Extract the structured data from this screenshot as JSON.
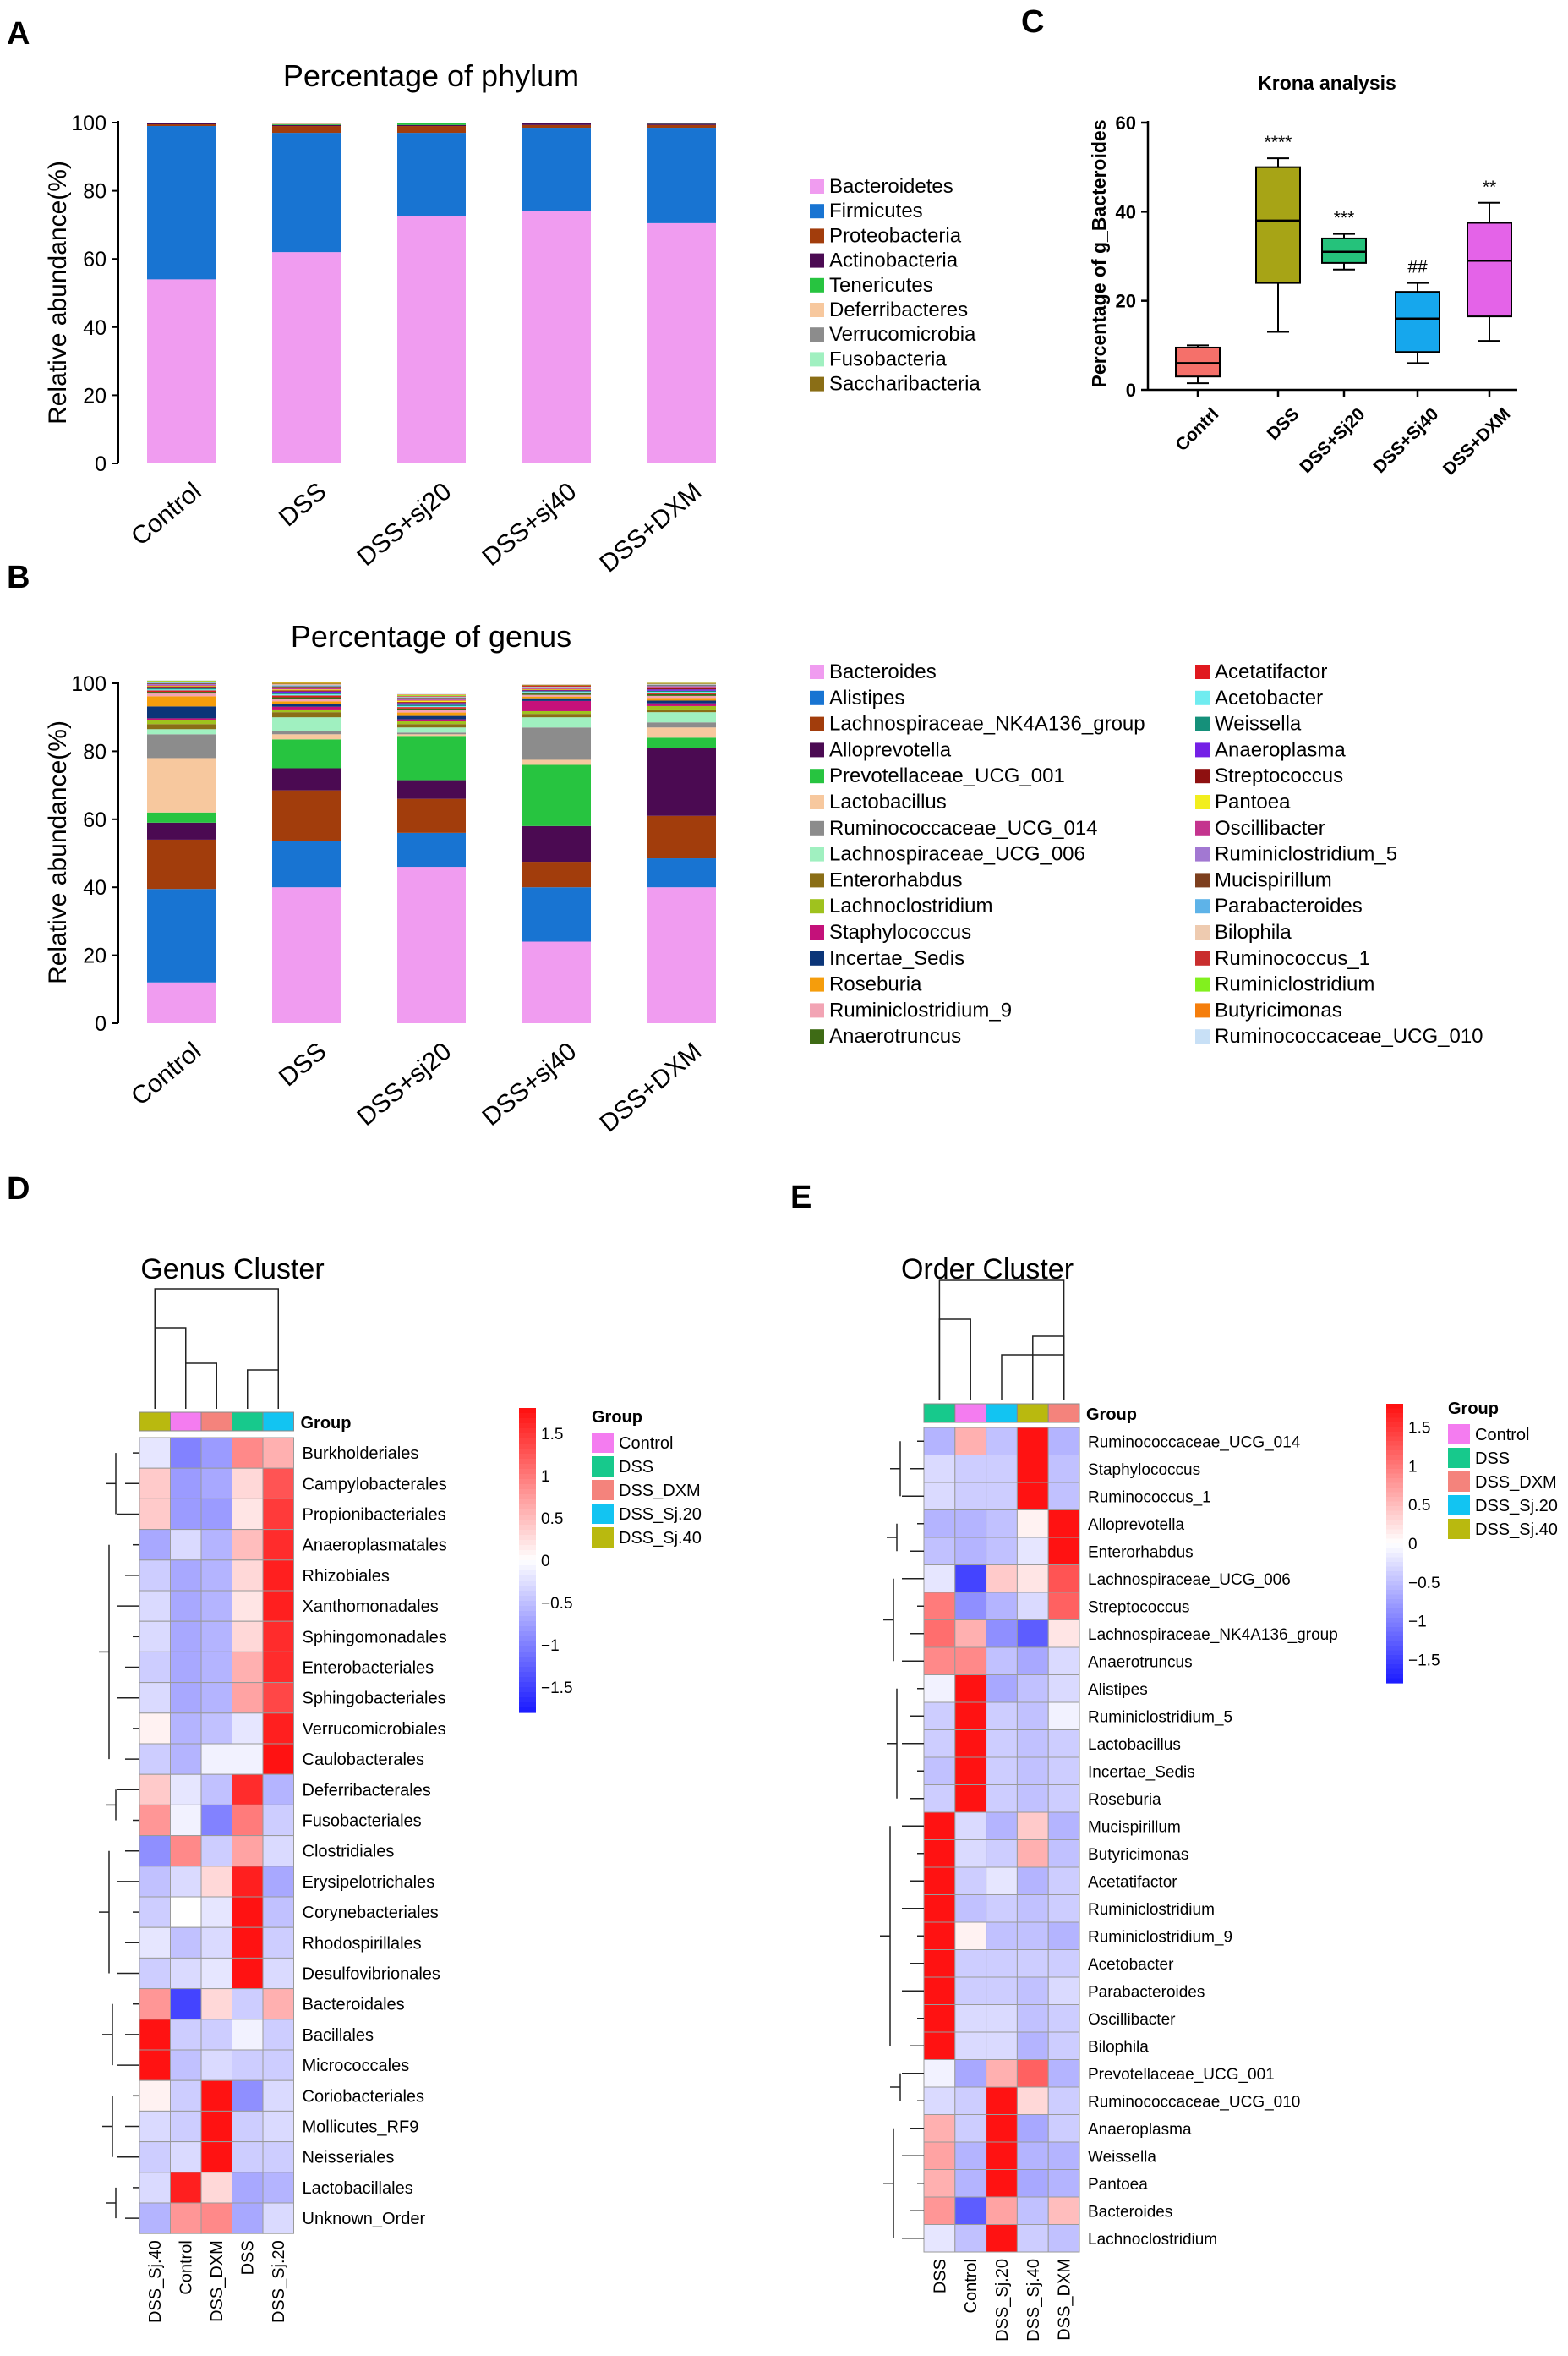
{
  "panel_labels": {
    "a": "A",
    "b": "B",
    "c": "C",
    "d": "D",
    "e": "E"
  },
  "chart_data": [
    {
      "panel": "A",
      "type": "bar",
      "stacked": true,
      "title": "Percentage of phylum",
      "xlabel": "",
      "ylabel": "Relative abundance(%)",
      "ylim": [
        0,
        100
      ],
      "yticks": [
        "0",
        "20",
        "40",
        "60",
        "80",
        "100"
      ],
      "categories": [
        "Control",
        "DSS",
        "DSS+sj20",
        "DSS+sj40",
        "DSS+DXM"
      ],
      "series": [
        {
          "name": "Bacteroidetes",
          "color": "#f09cf0",
          "values": [
            54,
            62,
            72.5,
            74,
            70.5
          ]
        },
        {
          "name": "Firmicutes",
          "color": "#1874d2",
          "values": [
            45,
            35,
            24.5,
            24.5,
            28
          ]
        },
        {
          "name": "Proteobacteria",
          "color": "#a23d0c",
          "values": [
            0.5,
            2,
            2,
            0.8,
            0.8
          ]
        },
        {
          "name": "Actinobacteria",
          "color": "#4b0a52",
          "values": [
            0.3,
            0.3,
            0.3,
            0.5,
            0.4
          ]
        },
        {
          "name": "Tenericutes",
          "color": "#27c440",
          "values": [
            0.1,
            0.2,
            0.5,
            0.1,
            0.2
          ]
        },
        {
          "name": "Deferribacteres",
          "color": "#f7c89e",
          "values": [
            0.05,
            0.2,
            0.1,
            0.05,
            0.05
          ]
        },
        {
          "name": "Verrucomicrobia",
          "color": "#8c8c8c",
          "values": [
            0.05,
            0.1,
            0.05,
            0.02,
            0.02
          ]
        },
        {
          "name": "Fusobacteria",
          "color": "#a0f0c0",
          "values": [
            0,
            0.1,
            0.05,
            0.02,
            0.02
          ]
        },
        {
          "name": "Saccharibacteria",
          "color": "#8a6e16",
          "values": [
            0,
            0.1,
            0,
            0.01,
            0.01
          ]
        }
      ]
    },
    {
      "panel": "B",
      "type": "bar",
      "stacked": true,
      "title": "Percentage of genus",
      "xlabel": "",
      "ylabel": "Relative abundance(%)",
      "ylim": [
        0,
        100
      ],
      "yticks": [
        "0",
        "20",
        "40",
        "60",
        "80",
        "100"
      ],
      "categories": [
        "Control",
        "DSS",
        "DSS+sj20",
        "DSS+sj40",
        "DSS+DXM"
      ],
      "series": [
        {
          "name": "Bacteroides",
          "color": "#f09cf0",
          "values": [
            12,
            40,
            46,
            24,
            40
          ]
        },
        {
          "name": "Alistipes",
          "color": "#1874d2",
          "values": [
            27.5,
            13.5,
            10,
            16,
            8.5
          ]
        },
        {
          "name": "Lachnospiraceae_NK4A136_group",
          "color": "#a23d0c",
          "values": [
            14.5,
            15,
            10,
            7.5,
            12.5
          ]
        },
        {
          "name": "Alloprevotella",
          "color": "#4b0a52",
          "values": [
            5,
            6.5,
            5.5,
            10.5,
            20
          ]
        },
        {
          "name": "Prevotellaceae_UCG_001",
          "color": "#27c440",
          "values": [
            3,
            8.5,
            13,
            18,
            3
          ]
        },
        {
          "name": "Lactobacillus",
          "color": "#f7c89e",
          "values": [
            16,
            1.5,
            0.5,
            1.5,
            3
          ]
        },
        {
          "name": "Ruminococcaceae_UCG_014",
          "color": "#8c8c8c",
          "values": [
            7,
            1,
            0.5,
            9.5,
            1.5
          ]
        },
        {
          "name": "Lachnospiraceae_UCG_006",
          "color": "#a0f0c0",
          "values": [
            1.5,
            4,
            1.5,
            3,
            3
          ]
        },
        {
          "name": "Enterorhabdus",
          "color": "#8a6e16",
          "values": [
            1.5,
            1.5,
            1,
            1,
            0.8
          ]
        },
        {
          "name": "Lachnoclostridium",
          "color": "#9fc21e",
          "values": [
            1.2,
            0.8,
            0.8,
            0.8,
            1
          ]
        },
        {
          "name": "Staphylococcus",
          "color": "#c4117a",
          "values": [
            0.5,
            0.8,
            0.6,
            3,
            0.8
          ]
        },
        {
          "name": "Incertae_Sedis",
          "color": "#0b3578",
          "values": [
            3.5,
            0.8,
            1,
            0.8,
            0.8
          ]
        },
        {
          "name": "Roseburia",
          "color": "#f59d0c",
          "values": [
            3,
            0.8,
            1,
            0.5,
            0.8
          ]
        },
        {
          "name": "Ruminiclostridium_9",
          "color": "#f2a4b4",
          "values": [
            0.8,
            0.7,
            0.7,
            0.5,
            0.6
          ]
        },
        {
          "name": "Anaerotruncus",
          "color": "#3e6b15",
          "values": [
            0.5,
            0.5,
            0.5,
            0.4,
            0.5
          ]
        },
        {
          "name": "Acetatifactor",
          "color": "#e0191f",
          "values": [
            0.4,
            0.5,
            0.4,
            0.3,
            0.4
          ]
        },
        {
          "name": "Acetobacter",
          "color": "#70ecf0",
          "values": [
            0.3,
            0.4,
            0.3,
            0.2,
            0.3
          ]
        },
        {
          "name": "Weissella",
          "color": "#15907a",
          "values": [
            0.3,
            0.4,
            0.4,
            0.2,
            0.3
          ]
        },
        {
          "name": "Anaeroplasma",
          "color": "#7420e6",
          "values": [
            0.3,
            0.4,
            0.5,
            0.2,
            0.4
          ]
        },
        {
          "name": "Streptococcus",
          "color": "#8e1010",
          "values": [
            0.3,
            0.3,
            0.3,
            0.2,
            0.3
          ]
        },
        {
          "name": "Pantoea",
          "color": "#f2ee1e",
          "values": [
            0.2,
            0.3,
            0.4,
            0.2,
            0.3
          ]
        },
        {
          "name": "Oscillibacter",
          "color": "#c4348e",
          "values": [
            0.2,
            0.3,
            0.3,
            0.2,
            0.2
          ]
        },
        {
          "name": "Ruminiclostridium_5",
          "color": "#a278d2",
          "values": [
            0.3,
            0.3,
            0.3,
            0.2,
            0.2
          ]
        },
        {
          "name": "Mucispirillum",
          "color": "#7d3f1e",
          "values": [
            0.2,
            0.3,
            0.2,
            0.1,
            0.2
          ]
        },
        {
          "name": "Parabacteroides",
          "color": "#5eb3e8",
          "values": [
            0.2,
            0.3,
            0.2,
            0.1,
            0.2
          ]
        },
        {
          "name": "Bilophila",
          "color": "#eecbb0",
          "values": [
            0.2,
            0.3,
            0.2,
            0.1,
            0.2
          ]
        },
        {
          "name": "Ruminococcus_1",
          "color": "#c92e2e",
          "values": [
            0.1,
            0.2,
            0.2,
            0.4,
            0.1
          ]
        },
        {
          "name": "Ruminiclostridium",
          "color": "#82f01e",
          "values": [
            0.2,
            0.2,
            0.2,
            0.1,
            0.2
          ]
        },
        {
          "name": "Butyricimonas",
          "color": "#f57e0c",
          "values": [
            0.1,
            0.2,
            0.2,
            0.1,
            0.1
          ]
        },
        {
          "name": "Ruminococcaceae_UCG_010",
          "color": "#c8e0f6",
          "values": [
            0.1,
            0.2,
            0.2,
            0.1,
            0.1
          ]
        }
      ]
    },
    {
      "panel": "C",
      "type": "box",
      "title": "Krona analysis",
      "xlabel": "",
      "ylabel": "Percentage of g_Bacteroides",
      "ylim": [
        0,
        60
      ],
      "yticks": [
        "0",
        "20",
        "40",
        "60"
      ],
      "categories": [
        "Contrl",
        "DSS",
        "DSS+Sj20",
        "DSS+Sj40",
        "DSS+DXM"
      ],
      "colors": [
        "#f5706a",
        "#a7a416",
        "#25c27b",
        "#16a7ed",
        "#e463e8"
      ],
      "boxes": [
        {
          "min": 1.5,
          "q1": 3,
          "median": 6,
          "q3": 9.5,
          "max": 10
        },
        {
          "min": 13,
          "q1": 24,
          "median": 38,
          "q3": 50,
          "max": 52
        },
        {
          "min": 27,
          "q1": 28.5,
          "median": 31,
          "q3": 34,
          "max": 35
        },
        {
          "min": 6,
          "q1": 8.5,
          "median": 16,
          "q3": 22,
          "max": 24
        },
        {
          "min": 11,
          "q1": 16.5,
          "median": 29,
          "q3": 37.5,
          "max": 42
        }
      ],
      "annotations": [
        "",
        "****",
        "***",
        "##",
        "**"
      ]
    },
    {
      "panel": "D",
      "type": "heatmap",
      "title": "Genus Cluster",
      "legend_title": "Group",
      "group_label": "Group",
      "group_legend": [
        {
          "name": "Control",
          "color": "#f47cf0"
        },
        {
          "name": "DSS",
          "color": "#17c98c"
        },
        {
          "name": "DSS_DXM",
          "color": "#f4837c"
        },
        {
          "name": "DSS_Sj.20",
          "color": "#12c4f2"
        },
        {
          "name": "DSS_Sj.40",
          "color": "#b9b90f"
        }
      ],
      "scale_ticks": [
        "1.5",
        "1",
        "0.5",
        "0",
        "−0.5",
        "−1",
        "−1.5"
      ],
      "scale_range": [
        -1.8,
        1.8
      ],
      "columns": [
        "DSS_Sj.40",
        "Control",
        "DSS_DXM",
        "DSS",
        "DSS_Sj.20"
      ],
      "column_colors": [
        "#b9b90f",
        "#f47cf0",
        "#f4837c",
        "#17c98c",
        "#12c4f2"
      ],
      "rows": [
        "Burkholderiales",
        "Campylobacterales",
        "Propionibacteriales",
        "Anaeroplasmatales",
        "Rhizobiales",
        "Xanthomonadales",
        "Sphingomonadales",
        "Enterobacteriales",
        "Sphingobacteriales",
        "Verrucomicrobiales",
        "Caulobacterales",
        "Deferribacterales",
        "Fusobacteriales",
        "Clostridiales",
        "Erysipelotrichales",
        "Corynebacteriales",
        "Rhodospirillales",
        "Desulfovibrionales",
        "Bacteroidales",
        "Bacillales",
        "Micrococcales",
        "Coriobacteriales",
        "Mollicutes_RF9",
        "Neisseriales",
        "Lactobacillales",
        "Unknown_Order"
      ],
      "values": [
        [
          -0.2,
          -1.0,
          -0.8,
          0.9,
          0.6
        ],
        [
          0.4,
          -0.8,
          -0.7,
          0.3,
          1.3
        ],
        [
          0.4,
          -0.8,
          -0.8,
          0.2,
          1.5
        ],
        [
          -0.7,
          -0.3,
          -0.6,
          0.5,
          1.6
        ],
        [
          -0.4,
          -0.7,
          -0.6,
          0.3,
          1.7
        ],
        [
          -0.3,
          -0.7,
          -0.6,
          0.2,
          1.7
        ],
        [
          -0.3,
          -0.7,
          -0.6,
          0.3,
          1.6
        ],
        [
          -0.4,
          -0.7,
          -0.6,
          0.6,
          1.6
        ],
        [
          -0.3,
          -0.7,
          -0.6,
          0.7,
          1.4
        ],
        [
          0.1,
          -0.6,
          -0.5,
          -0.2,
          1.7
        ],
        [
          -0.4,
          -0.6,
          -0.1,
          -0.1,
          1.8
        ],
        [
          0.4,
          -0.2,
          -0.5,
          1.6,
          -0.6
        ],
        [
          0.8,
          -0.1,
          -1.0,
          1.0,
          -0.4
        ],
        [
          -0.9,
          0.9,
          -0.4,
          0.7,
          -0.3
        ],
        [
          -0.5,
          -0.3,
          0.3,
          1.7,
          -0.7
        ],
        [
          -0.4,
          0.0,
          -0.2,
          1.8,
          -0.5
        ],
        [
          -0.2,
          -0.5,
          -0.3,
          1.8,
          -0.4
        ],
        [
          -0.4,
          -0.3,
          -0.2,
          1.8,
          -0.3
        ],
        [
          0.8,
          -1.5,
          0.3,
          -0.4,
          0.6
        ],
        [
          1.8,
          -0.4,
          -0.4,
          -0.1,
          -0.4
        ],
        [
          1.8,
          -0.5,
          -0.3,
          -0.4,
          -0.4
        ],
        [
          0.1,
          -0.4,
          1.8,
          -0.9,
          -0.3
        ],
        [
          -0.3,
          -0.4,
          1.8,
          -0.4,
          -0.3
        ],
        [
          -0.4,
          -0.3,
          1.8,
          -0.4,
          -0.4
        ],
        [
          -0.3,
          1.7,
          0.3,
          -0.7,
          -0.6
        ],
        [
          -0.6,
          0.8,
          0.9,
          -0.7,
          -0.3
        ]
      ]
    },
    {
      "panel": "E",
      "type": "heatmap",
      "title": "Order Cluster",
      "legend_title": "Group",
      "group_label": "Group",
      "group_legend": [
        {
          "name": "Control",
          "color": "#f47cf0"
        },
        {
          "name": "DSS",
          "color": "#17c98c"
        },
        {
          "name": "DSS_DXM",
          "color": "#f4837c"
        },
        {
          "name": "DSS_Sj.20",
          "color": "#12c4f2"
        },
        {
          "name": "DSS_Sj.40",
          "color": "#b9b90f"
        }
      ],
      "scale_ticks": [
        "1.5",
        "1",
        "0.5",
        "0",
        "−0.5",
        "−1",
        "−1.5"
      ],
      "scale_range": [
        -1.8,
        1.8
      ],
      "columns": [
        "DSS",
        "Control",
        "DSS_Sj.20",
        "DSS_Sj.40",
        "DSS_DXM"
      ],
      "column_colors": [
        "#17c98c",
        "#f47cf0",
        "#12c4f2",
        "#b9b90f",
        "#f4837c"
      ],
      "rows": [
        "Ruminococcaceae_UCG_014",
        "Staphylococcus",
        "Ruminococcus_1",
        "Alloprevotella",
        "Enterorhabdus",
        "Lachnospiraceae_UCG_006",
        "Streptococcus",
        "Lachnospiraceae_NK4A136_group",
        "Anaerotruncus",
        "Alistipes",
        "Ruminiclostridium_5",
        "Lactobacillus",
        "Incertae_Sedis",
        "Roseburia",
        "Mucispirillum",
        "Butyricimonas",
        "Acetatifactor",
        "Ruminiclostridium",
        "Ruminiclostridium_9",
        "Acetobacter",
        "Parabacteroides",
        "Oscillibacter",
        "Bilophila",
        "Prevotellaceae_UCG_001",
        "Ruminococcaceae_UCG_010",
        "Anaeroplasma",
        "Weissella",
        "Pantoea",
        "Bacteroides",
        "Lachnoclostridium"
      ],
      "values": [
        [
          -0.6,
          0.6,
          -0.5,
          1.8,
          -0.6
        ],
        [
          -0.3,
          -0.4,
          -0.4,
          1.8,
          -0.5
        ],
        [
          -0.3,
          -0.4,
          -0.4,
          1.8,
          -0.5
        ],
        [
          -0.6,
          -0.6,
          -0.5,
          0.1,
          1.8
        ],
        [
          -0.5,
          -0.6,
          -0.5,
          -0.2,
          1.8
        ],
        [
          -0.2,
          -1.5,
          0.4,
          0.2,
          1.3
        ],
        [
          1.0,
          -0.9,
          -0.6,
          -0.3,
          1.2
        ],
        [
          1.1,
          0.6,
          -0.9,
          -1.3,
          0.2
        ],
        [
          0.9,
          0.9,
          -0.5,
          -0.7,
          -0.3
        ],
        [
          -0.1,
          1.8,
          -0.7,
          -0.5,
          -0.3
        ],
        [
          -0.4,
          1.8,
          -0.4,
          -0.5,
          -0.1
        ],
        [
          -0.4,
          1.8,
          -0.4,
          -0.5,
          -0.4
        ],
        [
          -0.5,
          1.8,
          -0.4,
          -0.5,
          -0.4
        ],
        [
          -0.4,
          1.8,
          -0.4,
          -0.5,
          -0.4
        ],
        [
          1.8,
          -0.3,
          -0.6,
          0.4,
          -0.6
        ],
        [
          1.8,
          -0.3,
          -0.4,
          0.6,
          -0.5
        ],
        [
          1.8,
          -0.4,
          -0.2,
          -0.6,
          -0.4
        ],
        [
          1.8,
          -0.5,
          -0.4,
          -0.5,
          -0.4
        ],
        [
          1.8,
          0.1,
          -0.5,
          -0.5,
          -0.6
        ],
        [
          1.8,
          -0.4,
          -0.4,
          -0.4,
          -0.4
        ],
        [
          1.8,
          -0.4,
          -0.4,
          -0.5,
          -0.3
        ],
        [
          1.8,
          -0.3,
          -0.3,
          -0.5,
          -0.4
        ],
        [
          1.8,
          -0.3,
          -0.3,
          -0.6,
          -0.4
        ],
        [
          -0.1,
          -0.7,
          0.6,
          1.2,
          -0.6
        ],
        [
          -0.3,
          -0.4,
          1.8,
          0.3,
          -0.4
        ],
        [
          0.6,
          -0.4,
          1.8,
          -0.7,
          -0.4
        ],
        [
          0.7,
          -0.6,
          1.8,
          -0.6,
          -0.6
        ],
        [
          0.6,
          -0.6,
          1.8,
          -0.7,
          -0.6
        ],
        [
          0.8,
          -1.3,
          0.7,
          -0.5,
          0.5
        ],
        [
          -0.2,
          -0.5,
          1.8,
          -0.4,
          -0.5
        ]
      ]
    }
  ]
}
